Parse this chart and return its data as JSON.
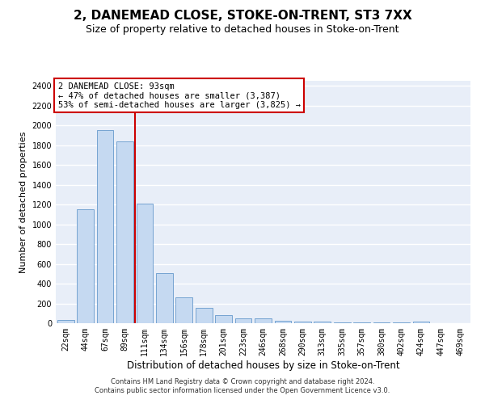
{
  "title1": "2, DANEMEAD CLOSE, STOKE-ON-TRENT, ST3 7XX",
  "title2": "Size of property relative to detached houses in Stoke-on-Trent",
  "xlabel": "Distribution of detached houses by size in Stoke-on-Trent",
  "ylabel": "Number of detached properties",
  "bar_values": [
    30,
    1150,
    1950,
    1840,
    1210,
    510,
    265,
    155,
    80,
    50,
    45,
    25,
    20,
    15,
    10,
    10,
    10,
    10,
    20,
    0,
    0
  ],
  "bar_labels": [
    "22sqm",
    "44sqm",
    "67sqm",
    "89sqm",
    "111sqm",
    "134sqm",
    "156sqm",
    "178sqm",
    "201sqm",
    "223sqm",
    "246sqm",
    "268sqm",
    "290sqm",
    "313sqm",
    "335sqm",
    "357sqm",
    "380sqm",
    "402sqm",
    "424sqm",
    "447sqm",
    "469sqm"
  ],
  "bar_color": "#c5d9f1",
  "bar_edge_color": "#6699cc",
  "vline_color": "#cc0000",
  "annotation_line1": "2 DANEMEAD CLOSE: 93sqm",
  "annotation_line2": "← 47% of detached houses are smaller (3,387)",
  "annotation_line3": "53% of semi-detached houses are larger (3,825) →",
  "annotation_box_edgecolor": "#cc0000",
  "ylim_max": 2450,
  "yticks": [
    0,
    200,
    400,
    600,
    800,
    1000,
    1200,
    1400,
    1600,
    1800,
    2000,
    2200,
    2400
  ],
  "footer_line1": "Contains HM Land Registry data © Crown copyright and database right 2024.",
  "footer_line2": "Contains public sector information licensed under the Open Government Licence v3.0.",
  "background_color": "#e8eef8",
  "grid_color": "#ffffff",
  "title1_fontsize": 11,
  "title2_fontsize": 9,
  "xlabel_fontsize": 8.5,
  "ylabel_fontsize": 8,
  "tick_fontsize": 7,
  "footer_fontsize": 6,
  "annotation_fontsize": 7.5
}
